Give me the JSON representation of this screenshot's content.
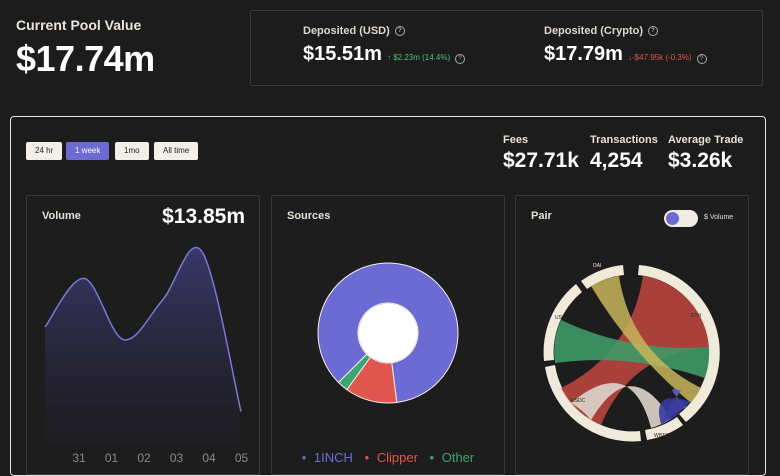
{
  "header": {
    "pool_label": "Current Pool Value",
    "pool_value": "$17.74m"
  },
  "deposited_usd": {
    "label": "Deposited (USD)",
    "value": "$15.51m",
    "change": "↑ $2.23m (14.4%)",
    "change_color": "#4ec07a"
  },
  "deposited_crypto": {
    "label": "Deposited (Crypto)",
    "value": "$17.79m",
    "change": "↓-$47.95k (-0.3%)",
    "change_color": "#e0564f"
  },
  "timeframes": [
    "24 hr",
    "1 week",
    "1mo",
    "All time"
  ],
  "active_timeframe": "1 week",
  "stats": {
    "fees_label": "Fees",
    "fees_value": "$27.71k",
    "transactions_label": "Transactions",
    "transactions_value": "4,254",
    "avg_trade_label": "Average Trade",
    "avg_trade_value": "$3.26k"
  },
  "volume_card": {
    "title": "Volume",
    "value": "$13.85m"
  },
  "sources_card": {
    "title": "Sources",
    "legend": [
      {
        "label": "1INCH",
        "color": "#6c6bd3"
      },
      {
        "label": "Clipper",
        "color": "#e0564f"
      },
      {
        "label": "Other",
        "color": "#3aa671"
      }
    ]
  },
  "pair_card": {
    "title": "Pair",
    "toggle_label": "$ Volume",
    "tokens": [
      "DAI",
      "ETH",
      "USDT",
      "USDC",
      "WBTC"
    ]
  },
  "chart_data": [
    {
      "type": "area",
      "categories": [
        "31",
        "01",
        "02",
        "03",
        "04",
        "05"
      ],
      "values": [
        0.55,
        0.82,
        0.48,
        0.7,
        0.97,
        0.08
      ],
      "ylim": [
        0,
        1
      ],
      "grid": false,
      "color": "#7a79d6"
    },
    {
      "type": "pie",
      "categories": [
        "1INCH",
        "Clipper",
        "Other"
      ],
      "values": [
        85.5,
        12,
        2.5
      ],
      "colors": [
        "#6c6bd3",
        "#e0564f",
        "#3aa671"
      ]
    }
  ]
}
